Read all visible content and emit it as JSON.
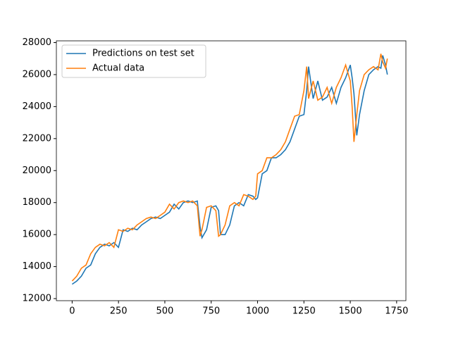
{
  "chart_data": {
    "type": "line",
    "x": [
      0,
      25,
      50,
      75,
      100,
      125,
      150,
      175,
      200,
      225,
      250,
      275,
      300,
      325,
      350,
      375,
      400,
      425,
      450,
      475,
      500,
      525,
      550,
      575,
      600,
      625,
      650,
      675,
      690,
      700,
      725,
      750,
      775,
      790,
      800,
      825,
      850,
      875,
      900,
      925,
      950,
      975,
      990,
      1000,
      1025,
      1050,
      1075,
      1100,
      1125,
      1150,
      1175,
      1200,
      1225,
      1250,
      1265,
      1275,
      1300,
      1325,
      1350,
      1375,
      1400,
      1425,
      1450,
      1475,
      1500,
      1510,
      1520,
      1535,
      1550,
      1575,
      1600,
      1625,
      1650,
      1665,
      1675,
      1690,
      1700
    ],
    "series": [
      {
        "name": "Predictions on test set",
        "color": "#1f77b4",
        "values": [
          12900,
          13100,
          13400,
          13900,
          14100,
          14800,
          15200,
          15400,
          15300,
          15500,
          15200,
          16300,
          16200,
          16400,
          16300,
          16600,
          16800,
          17000,
          17100,
          17000,
          17200,
          17400,
          17900,
          17600,
          18000,
          18100,
          18000,
          18100,
          16500,
          15800,
          16300,
          17700,
          17800,
          17500,
          16000,
          16000,
          16600,
          17800,
          18000,
          17800,
          18500,
          18400,
          18200,
          18300,
          19800,
          20000,
          20800,
          20800,
          21000,
          21300,
          21800,
          22600,
          23400,
          23500,
          25000,
          26500,
          24500,
          25600,
          24400,
          24600,
          25200,
          24200,
          25200,
          25800,
          26600,
          25800,
          24800,
          22200,
          23500,
          25000,
          26000,
          26300,
          26500,
          26400,
          27200,
          26600,
          26000
        ]
      },
      {
        "name": "Actual data",
        "color": "#ff7f0e",
        "values": [
          13100,
          13400,
          13900,
          14100,
          14800,
          15200,
          15400,
          15300,
          15500,
          15200,
          16300,
          16200,
          16400,
          16300,
          16600,
          16800,
          17000,
          17100,
          17000,
          17200,
          17400,
          17900,
          17600,
          18000,
          18100,
          18000,
          18100,
          17800,
          15900,
          16300,
          17700,
          17800,
          17500,
          15900,
          16000,
          16600,
          17800,
          18000,
          17800,
          18500,
          18400,
          18200,
          18400,
          19800,
          20000,
          20800,
          20800,
          21000,
          21300,
          21800,
          22600,
          23400,
          23500,
          25000,
          26500,
          24500,
          25600,
          24400,
          24600,
          25200,
          24200,
          25200,
          25800,
          26600,
          25600,
          24000,
          21800,
          23500,
          25000,
          26000,
          26300,
          26500,
          26300,
          27300,
          26800,
          26400,
          27000
        ]
      }
    ],
    "xlim": [
      -85,
      1800
    ],
    "ylim": [
      11870,
      28110
    ],
    "xticks": [
      0,
      250,
      500,
      750,
      1000,
      1250,
      1500,
      1750
    ],
    "yticks": [
      12000,
      14000,
      16000,
      18000,
      20000,
      22000,
      24000,
      26000,
      28000
    ],
    "legend": "upper left"
  }
}
